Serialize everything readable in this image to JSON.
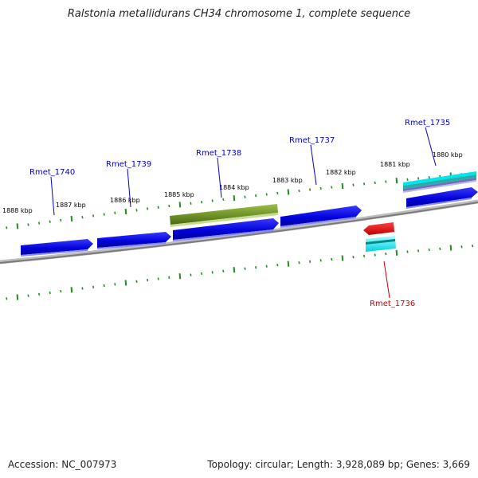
{
  "title": "Ralstonia metallidurans CH34 chromosome 1, complete sequence",
  "footer": {
    "accession": "Accession: NC_007973",
    "info": "Topology: circular; Length: 3,928,089 bp; Genes: 3,669"
  },
  "scale_labels": [
    "1888 kbp",
    "1887 kbp",
    "1886 kbp",
    "1885 kbp",
    "1884 kbp",
    "1883 kbp",
    "1882 kbp",
    "1881 kbp",
    "1880 kbp"
  ],
  "genes": [
    {
      "id": "Rmet_1740",
      "strand": "forward",
      "color": "#0000cc"
    },
    {
      "id": "Rmet_1739",
      "strand": "forward",
      "color": "#0000cc"
    },
    {
      "id": "Rmet_1738",
      "strand": "forward",
      "color": "#0000cc"
    },
    {
      "id": "Rmet_1737",
      "strand": "forward",
      "color": "#0000cc"
    },
    {
      "id": "Rmet_1736",
      "strand": "reverse",
      "color": "#cc0000"
    },
    {
      "id": "Rmet_1735",
      "strand": "forward",
      "color": "#0000cc"
    }
  ],
  "features": [
    {
      "name": "olive-feature",
      "color": "#6b8e23"
    },
    {
      "name": "cyan-feature",
      "color": "#00e5ee"
    },
    {
      "name": "teal-feature",
      "color": "#20b2aa"
    },
    {
      "name": "slate-feature",
      "color": "#8080c0"
    }
  ],
  "colors": {
    "backbone": "#808080",
    "ticks": "#228b22",
    "label_forward": "#0000cc",
    "label_reverse": "#cc0000"
  }
}
